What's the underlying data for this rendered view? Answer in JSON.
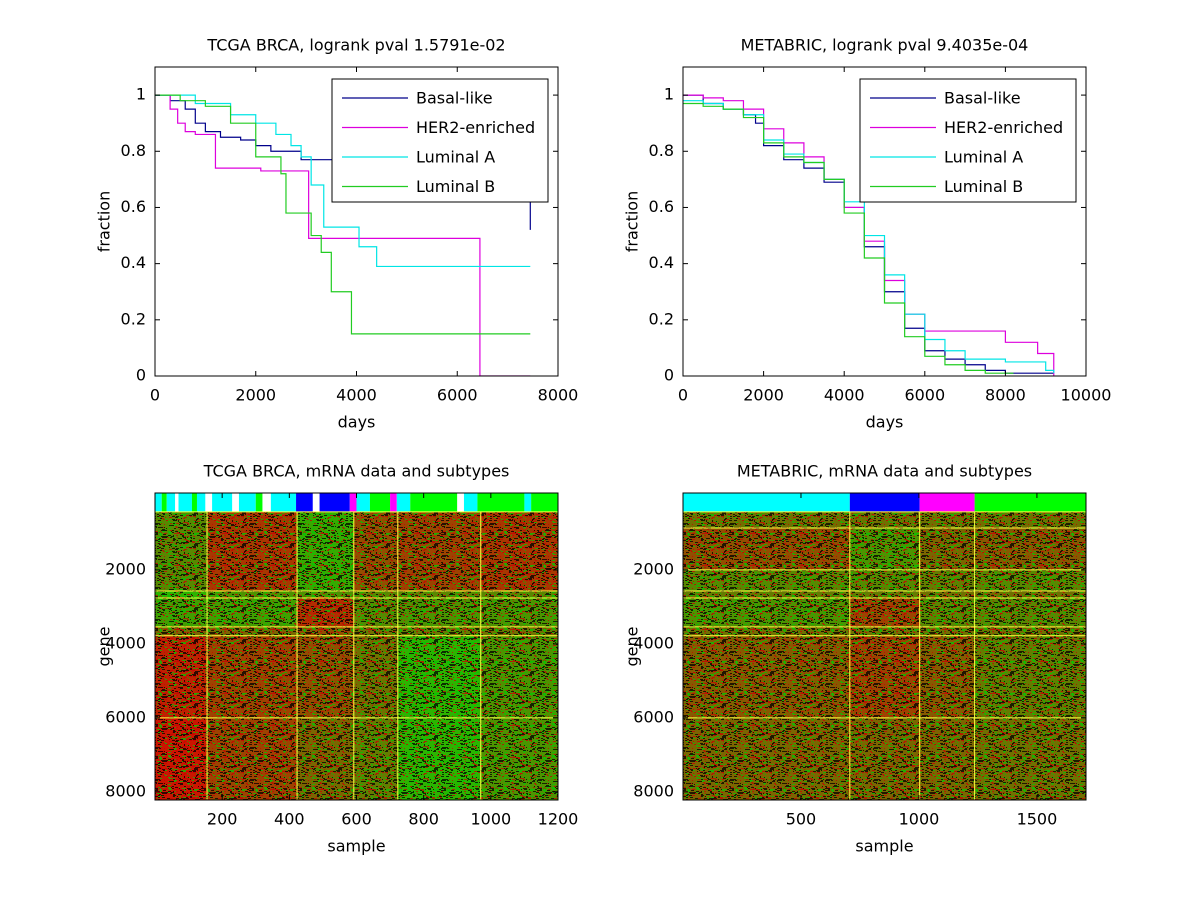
{
  "chart_data": [
    {
      "type": "line",
      "drawstyle": "steps-post",
      "title": "TCGA BRCA, logrank pval 1.5791e-02",
      "x_label": "days",
      "y_label": "fraction",
      "xlim": [
        0,
        8000
      ],
      "ylim": [
        0,
        1.1
      ],
      "xticks": [
        0,
        2000,
        4000,
        6000,
        8000
      ],
      "yticks": [
        0,
        0.2,
        0.4,
        0.6,
        0.8,
        1
      ],
      "legend": "upper right",
      "series": [
        {
          "name": "Basal-like",
          "color": "#00008b",
          "x": [
            0,
            300,
            600,
            800,
            1000,
            1300,
            1700,
            2000,
            2300,
            2900,
            7450,
            7450
          ],
          "values": [
            1,
            0.98,
            0.95,
            0.9,
            0.87,
            0.85,
            0.84,
            0.82,
            0.8,
            0.77,
            0.77,
            0.52
          ]
        },
        {
          "name": "HER2-enriched",
          "color": "#dd00dd",
          "x": [
            0,
            300,
            450,
            600,
            800,
            1200,
            1700,
            2100,
            2900,
            3050,
            6450,
            6450,
            7450
          ],
          "values": [
            1,
            0.95,
            0.9,
            0.87,
            0.86,
            0.74,
            0.74,
            0.73,
            0.73,
            0.49,
            0.49,
            0,
            0
          ]
        },
        {
          "name": "Luminal A",
          "color": "#00e5e5",
          "x": [
            0,
            800,
            1500,
            2000,
            2400,
            2700,
            2900,
            3100,
            3350,
            4050,
            4400,
            7450
          ],
          "values": [
            1,
            0.97,
            0.93,
            0.9,
            0.86,
            0.82,
            0.78,
            0.68,
            0.53,
            0.46,
            0.39,
            0.39
          ]
        },
        {
          "name": "Luminal B",
          "color": "#22cc22",
          "x": [
            0,
            500,
            1000,
            1500,
            2000,
            2500,
            2600,
            3100,
            3300,
            3500,
            3900,
            7450
          ],
          "values": [
            1,
            0.98,
            0.96,
            0.9,
            0.78,
            0.72,
            0.58,
            0.5,
            0.44,
            0.3,
            0.15,
            0.15
          ]
        }
      ]
    },
    {
      "type": "line",
      "drawstyle": "steps-post",
      "title": "METABRIC, logrank pval 9.4035e-04",
      "x_label": "days",
      "y_label": "fraction",
      "xlim": [
        0,
        10000
      ],
      "ylim": [
        0,
        1.1
      ],
      "xticks": [
        0,
        2000,
        4000,
        6000,
        8000,
        10000
      ],
      "yticks": [
        0,
        0.2,
        0.4,
        0.6,
        0.8,
        1
      ],
      "legend": "upper right",
      "series": [
        {
          "name": "Basal-like",
          "color": "#00008b",
          "x": [
            0,
            500,
            1000,
            1500,
            1800,
            2000,
            2500,
            3000,
            3500,
            4000,
            4500,
            5000,
            5500,
            6000,
            6500,
            7000,
            7500,
            8000,
            9200
          ],
          "values": [
            1,
            0.97,
            0.95,
            0.93,
            0.9,
            0.82,
            0.77,
            0.74,
            0.69,
            0.6,
            0.46,
            0.3,
            0.17,
            0.09,
            0.06,
            0.04,
            0.02,
            0.01,
            0.01
          ]
        },
        {
          "name": "HER2-enriched",
          "color": "#dd00dd",
          "x": [
            0,
            500,
            1000,
            1500,
            2000,
            2500,
            3000,
            3500,
            4000,
            4500,
            5000,
            5500,
            6000,
            7000,
            8000,
            8800,
            9200
          ],
          "values": [
            1,
            0.99,
            0.98,
            0.95,
            0.88,
            0.83,
            0.78,
            0.7,
            0.6,
            0.48,
            0.34,
            0.22,
            0.16,
            0.16,
            0.12,
            0.08,
            0
          ]
        },
        {
          "name": "Luminal A",
          "color": "#00e5e5",
          "x": [
            0,
            500,
            1000,
            1500,
            2000,
            2500,
            3000,
            3500,
            4000,
            4500,
            5000,
            5500,
            6000,
            6500,
            7000,
            8000,
            9000,
            9200
          ],
          "values": [
            0.98,
            0.97,
            0.95,
            0.93,
            0.84,
            0.79,
            0.76,
            0.7,
            0.62,
            0.5,
            0.36,
            0.22,
            0.13,
            0.09,
            0.06,
            0.05,
            0.02,
            0.01
          ]
        },
        {
          "name": "Luminal B",
          "color": "#22cc22",
          "x": [
            0,
            500,
            1000,
            1500,
            2000,
            2500,
            3000,
            3500,
            4000,
            4500,
            5000,
            5500,
            6000,
            6500,
            7000,
            7500,
            8200
          ],
          "values": [
            0.97,
            0.96,
            0.95,
            0.92,
            0.83,
            0.78,
            0.76,
            0.7,
            0.58,
            0.42,
            0.26,
            0.14,
            0.07,
            0.04,
            0.02,
            0.01,
            0.01
          ]
        }
      ]
    },
    {
      "type": "heatmap",
      "title": "TCGA BRCA, mRNA data and subtypes",
      "x_label": "sample",
      "y_label": "gene",
      "xlim": [
        0,
        1200
      ],
      "ylim": [
        -80,
        8220
      ],
      "y_reversed": true,
      "xticks": [
        200,
        400,
        600,
        800,
        1000,
        1200
      ],
      "yticks": [
        2000,
        4000,
        6000,
        8000
      ],
      "low_color": "#00e000",
      "high_color": "#e00000",
      "separator_color": "#ffff40",
      "column_bounds": [
        0,
        155,
        423,
        592,
        723,
        970,
        1200
      ],
      "row_bounds": [
        430,
        2570,
        2760,
        3540,
        3780,
        6000,
        8220
      ],
      "values": [
        [
          -0.2,
          0.5,
          -0.5,
          0.3,
          0.4,
          0.5
        ],
        [
          -0.6,
          -0.3,
          -0.3,
          -0.2,
          -0.2,
          -0.2
        ],
        [
          -0.4,
          -0.4,
          0.6,
          -0.2,
          -0.3,
          -0.3
        ],
        [
          0.1,
          0.1,
          0.3,
          0,
          -0.1,
          0
        ],
        [
          0.7,
          0.4,
          0.3,
          0,
          -0.6,
          -0.3
        ],
        [
          0.8,
          0.4,
          0.1,
          -0.1,
          -0.6,
          -0.3
        ]
      ],
      "subtype_bar": [
        {
          "start": 0,
          "end": 20,
          "color": "#00ffff"
        },
        {
          "start": 20,
          "end": 35,
          "color": "#00ff00"
        },
        {
          "start": 35,
          "end": 60,
          "color": "#00ffff"
        },
        {
          "start": 60,
          "end": 70,
          "color": "#ffffff"
        },
        {
          "start": 70,
          "end": 110,
          "color": "#00ffff"
        },
        {
          "start": 110,
          "end": 125,
          "color": "#00ff00"
        },
        {
          "start": 125,
          "end": 150,
          "color": "#00ffff"
        },
        {
          "start": 150,
          "end": 170,
          "color": "#ffffff"
        },
        {
          "start": 170,
          "end": 230,
          "color": "#00ffff"
        },
        {
          "start": 230,
          "end": 250,
          "color": "#ffffff"
        },
        {
          "start": 250,
          "end": 300,
          "color": "#00ffff"
        },
        {
          "start": 300,
          "end": 320,
          "color": "#00ff00"
        },
        {
          "start": 320,
          "end": 345,
          "color": "#ffffff"
        },
        {
          "start": 345,
          "end": 420,
          "color": "#00ffff"
        },
        {
          "start": 420,
          "end": 470,
          "color": "#0000ff"
        },
        {
          "start": 470,
          "end": 490,
          "color": "#ffffff"
        },
        {
          "start": 490,
          "end": 580,
          "color": "#0000ff"
        },
        {
          "start": 580,
          "end": 600,
          "color": "#ff00ff"
        },
        {
          "start": 600,
          "end": 640,
          "color": "#00ffff"
        },
        {
          "start": 640,
          "end": 700,
          "color": "#00ff00"
        },
        {
          "start": 700,
          "end": 720,
          "color": "#ff00ff"
        },
        {
          "start": 720,
          "end": 760,
          "color": "#00ffff"
        },
        {
          "start": 760,
          "end": 900,
          "color": "#00ff00"
        },
        {
          "start": 900,
          "end": 920,
          "color": "#ffffff"
        },
        {
          "start": 920,
          "end": 960,
          "color": "#00ffff"
        },
        {
          "start": 960,
          "end": 1100,
          "color": "#00ff00"
        },
        {
          "start": 1100,
          "end": 1120,
          "color": "#00ffff"
        },
        {
          "start": 1120,
          "end": 1200,
          "color": "#00ff00"
        }
      ]
    },
    {
      "type": "heatmap",
      "title": "METABRIC, mRNA data and subtypes",
      "x_label": "sample",
      "y_label": "gene",
      "xlim": [
        0,
        1708
      ],
      "ylim": [
        -80,
        8220
      ],
      "y_reversed": true,
      "xticks": [
        500,
        1000,
        1500
      ],
      "yticks": [
        2000,
        4000,
        6000,
        8000
      ],
      "low_color": "#00e000",
      "high_color": "#e00000",
      "separator_color": "#ffff40",
      "column_bounds": [
        0,
        707,
        1003,
        1236,
        1708
      ],
      "row_bounds": [
        430,
        865,
        2000,
        2570,
        2760,
        3540,
        3780,
        6000,
        8220
      ],
      "values": [
        [
          0,
          0,
          0,
          0
        ],
        [
          0.3,
          -0.3,
          0.1,
          0.2
        ],
        [
          -0.2,
          -0.2,
          -0.1,
          -0.2
        ],
        [
          -0.1,
          -0.1,
          0,
          0
        ],
        [
          -0.3,
          0.4,
          -0.2,
          -0.2
        ],
        [
          0,
          0,
          0,
          0
        ],
        [
          0.2,
          0.4,
          0.2,
          -0.1
        ],
        [
          0.1,
          0.1,
          0.1,
          0
        ]
      ],
      "subtype_bar": [
        {
          "start": 0,
          "end": 707,
          "color": "#00ffff"
        },
        {
          "start": 707,
          "end": 1003,
          "color": "#0000ff"
        },
        {
          "start": 1003,
          "end": 1236,
          "color": "#ff00ff"
        },
        {
          "start": 1236,
          "end": 1708,
          "color": "#00ff00"
        }
      ]
    }
  ]
}
